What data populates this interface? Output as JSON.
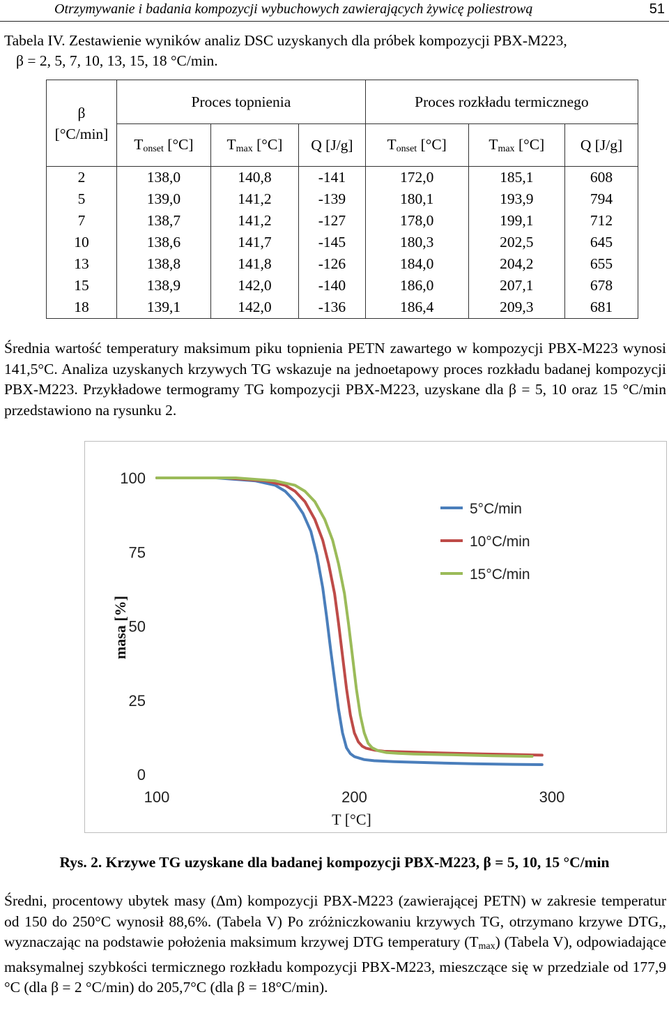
{
  "header": {
    "running_title": "Otrzymywanie i badania kompozycji wybuchowych zawierających żywicę poliestrową",
    "page_number": "51"
  },
  "table_caption": {
    "line1": "Tabela IV. Zestawienie wyników analiz DSC uzyskanych dla próbek kompozycji PBX-M223,",
    "line2": "β = 2, 5, 7, 10, 13, 15, 18 °C/min."
  },
  "table": {
    "beta_header_line1": "β",
    "beta_header_line2": "[°C/min]",
    "group_melting": "Proces topnienia",
    "group_decomposition": "Proces rozkładu termicznego",
    "col_T": "T",
    "sub_onset": "onset",
    "sub_max": "max",
    "unit_C": " [°C]",
    "col_Q": "Q [J/g]",
    "rows": [
      [
        "2",
        "138,0",
        "140,8",
        "-141",
        "172,0",
        "185,1",
        "608"
      ],
      [
        "5",
        "139,0",
        "141,2",
        "-139",
        "180,1",
        "193,9",
        "794"
      ],
      [
        "7",
        "138,7",
        "141,2",
        "-127",
        "178,0",
        "199,1",
        "712"
      ],
      [
        "10",
        "138,6",
        "141,7",
        "-145",
        "180,3",
        "202,5",
        "645"
      ],
      [
        "13",
        "138,8",
        "141,8",
        "-126",
        "184,0",
        "204,2",
        "655"
      ],
      [
        "15",
        "138,9",
        "142,0",
        "-140",
        "186,0",
        "207,1",
        "678"
      ],
      [
        "18",
        "139,1",
        "142,0",
        "-136",
        "186,4",
        "209,3",
        "681"
      ]
    ]
  },
  "paragraph1": "Średnia wartość temperatury maksimum piku topnienia PETN zawartego w kompozycji PBX-M223 wynosi 141,5°C. Analiza uzyskanych krzywych TG wskazuje na jednoetapowy proces rozkładu badanej kompozycji PBX-M223. Przykładowe termogramy TG kompozycji PBX-M223, uzyskane dla β = 5, 10 oraz 15 °C/min przedstawiono na rysunku 2.",
  "figure_caption": "Rys. 2. Krzywe TG uzyskane dla badanej kompozycji PBX-M223, β = 5, 10, 15 °C/min",
  "paragraph2": {
    "part1": "Średni, procentowy ubytek masy (Δm) kompozycji PBX-M223 (zawierającej PETN) w zakresie temperatur od 150 do 250°C wynosił 88,6%. (Tabela V) Po zróżniczkowaniu krzywych TG, otrzymano krzywe DTG,, wyznaczając na podstawie położenia maksimum krzywej DTG temperatury (T",
    "sub": "max",
    "part2": ") (Tabela V), odpowiadające maksymalnej szybkości termicznego rozkładu kompozycji PBX-M223, mieszczące się w przedziale od 177,9 °C (dla β = 2 °C/min) do 205,7°C (dla β = 18°C/min)."
  },
  "chart_data": {
    "type": "line",
    "xlabel": "T [°C]",
    "ylabel": "masa [%]",
    "xlim": [
      100,
      300
    ],
    "ylim": [
      0,
      100
    ],
    "xticks": [
      "100",
      "200",
      "300"
    ],
    "yticks": [
      "0",
      "25",
      "50",
      "75",
      "100"
    ],
    "grid": false,
    "legend_position": "top-right",
    "series": [
      {
        "name": "5°C/min",
        "color": "#4a7ebb",
        "x": [
          100,
          130,
          150,
          160,
          165,
          170,
          174,
          178,
          181,
          184,
          186,
          188,
          190,
          192,
          194,
          196,
          198,
          200,
          205,
          210,
          220,
          240,
          260,
          280,
          295
        ],
        "y": [
          100,
          100,
          99,
          97.5,
          95.5,
          92,
          88,
          82,
          74,
          63,
          53,
          42,
          32,
          22,
          14,
          9,
          7,
          6,
          5,
          4.6,
          4.3,
          3.9,
          3.6,
          3.4,
          3.3
        ]
      },
      {
        "name": "10°C/min",
        "color": "#be4b48",
        "x": [
          100,
          135,
          155,
          165,
          170,
          175,
          180,
          184,
          187,
          190,
          192,
          194,
          196,
          198,
          200,
          202,
          204,
          206,
          210,
          215,
          225,
          245,
          265,
          280,
          295
        ],
        "y": [
          100,
          100,
          99,
          97.5,
          95.5,
          92,
          86,
          79,
          71,
          61,
          51,
          40,
          29,
          20,
          14,
          11,
          9.5,
          8.8,
          8.2,
          7.8,
          7.6,
          7.2,
          6.9,
          6.7,
          6.5
        ]
      },
      {
        "name": "15°C/min",
        "color": "#9bbb59",
        "x": [
          100,
          140,
          160,
          170,
          175,
          180,
          185,
          189,
          192,
          195,
          197,
          199,
          201,
          203,
          205,
          207,
          209,
          212,
          216,
          222,
          230,
          250,
          270,
          290
        ],
        "y": [
          100,
          100,
          99,
          97.5,
          95.5,
          92,
          86,
          79,
          71,
          61,
          51,
          40,
          29,
          20,
          14,
          10.5,
          9,
          8,
          7.4,
          7.1,
          6.9,
          6.6,
          6.3,
          6.1
        ]
      }
    ]
  }
}
